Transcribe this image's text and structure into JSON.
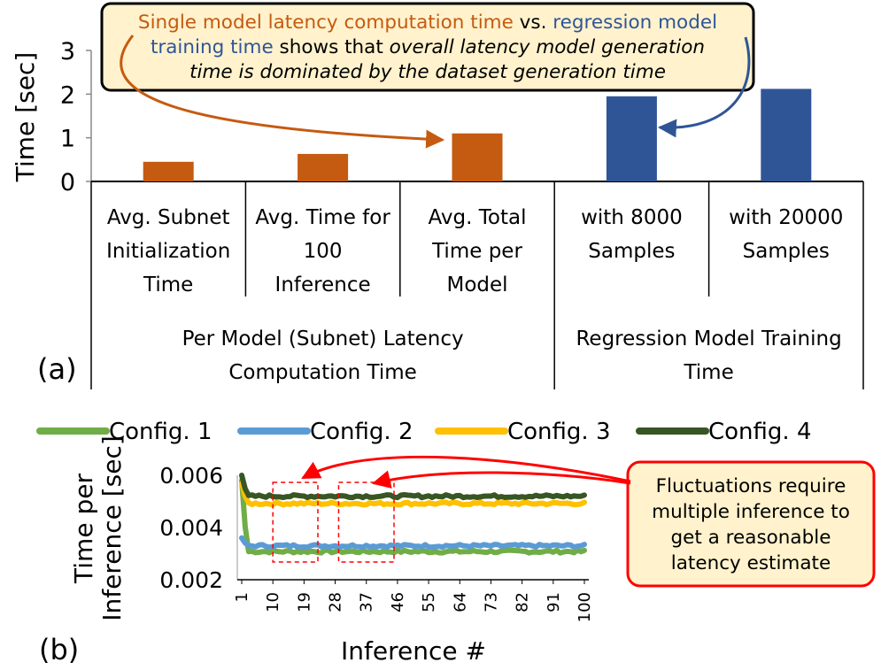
{
  "chart_data": [
    {
      "panel": "(a)",
      "type": "bar",
      "ylabel": "Time [sec]",
      "ylim": [
        0,
        3
      ],
      "yticks": [
        0,
        1,
        2,
        3
      ],
      "grid": false,
      "categories": [
        [
          "Avg. Subnet",
          "Initialization",
          "Time"
        ],
        [
          "Avg. Time for",
          "100",
          "Inference"
        ],
        [
          "Avg. Total",
          "Time per",
          "Model"
        ],
        [
          "with 8000",
          "Samples"
        ],
        [
          "with 20000",
          "Samples"
        ]
      ],
      "groups": [
        {
          "label": [
            "Per Model (Subnet) Latency",
            "Computation Time"
          ],
          "span": [
            0,
            2
          ]
        },
        {
          "label": [
            "Regression Model Training",
            "Time"
          ],
          "span": [
            3,
            4
          ]
        }
      ],
      "values": [
        0.45,
        0.63,
        1.1,
        1.95,
        2.12
      ],
      "bar_colors": [
        "#C55A11",
        "#C55A11",
        "#C55A11",
        "#2F5597",
        "#2F5597"
      ],
      "annotation": {
        "segments": [
          {
            "text": "Single model latency computation time",
            "color": "#C55A11",
            "italic": false
          },
          {
            "text": " vs. ",
            "color": "#000000",
            "italic": false
          },
          {
            "text": "regression model",
            "color": "#2F5597",
            "italic": false
          },
          {
            "text": "training time",
            "color": "#2F5597",
            "italic": false
          },
          {
            "text": " shows that ",
            "color": "#000000",
            "italic": false
          },
          {
            "text": "overall latency model generation",
            "color": "#000000",
            "italic": true
          },
          {
            "text": "time is dominated by the dataset generation time",
            "color": "#000000",
            "italic": true
          }
        ]
      }
    },
    {
      "panel": "(b)",
      "type": "line",
      "xlabel": "Inference #",
      "ylabel": [
        "Time per",
        "Inference [sec]"
      ],
      "ylim": [
        0.002,
        0.006
      ],
      "yticks": [
        "0.002",
        "0.004",
        "0.006"
      ],
      "xlim": [
        1,
        100
      ],
      "xticks": [
        "1",
        "10",
        "19",
        "28",
        "37",
        "46",
        "55",
        "64",
        "73",
        "82",
        "91",
        "100"
      ],
      "grid": false,
      "legend_position": "top",
      "series": [
        {
          "name": "Config. 1",
          "color": "#70AD47",
          "start": 0.0058,
          "steady": 0.00308
        },
        {
          "name": "Config. 2",
          "color": "#5B9BD5",
          "start": 0.0036,
          "steady": 0.0033
        },
        {
          "name": "Config. 3",
          "color": "#FFC000",
          "start": 0.0057,
          "steady": 0.00492
        },
        {
          "name": "Config. 4",
          "color": "#375623",
          "start": 0.006,
          "steady": 0.0052
        }
      ],
      "callout": [
        "Fluctuations require",
        "multiple inference to",
        "get a reasonable",
        "latency estimate"
      ],
      "highlight_ranges": [
        [
          10,
          23
        ],
        [
          29,
          45
        ]
      ]
    }
  ]
}
